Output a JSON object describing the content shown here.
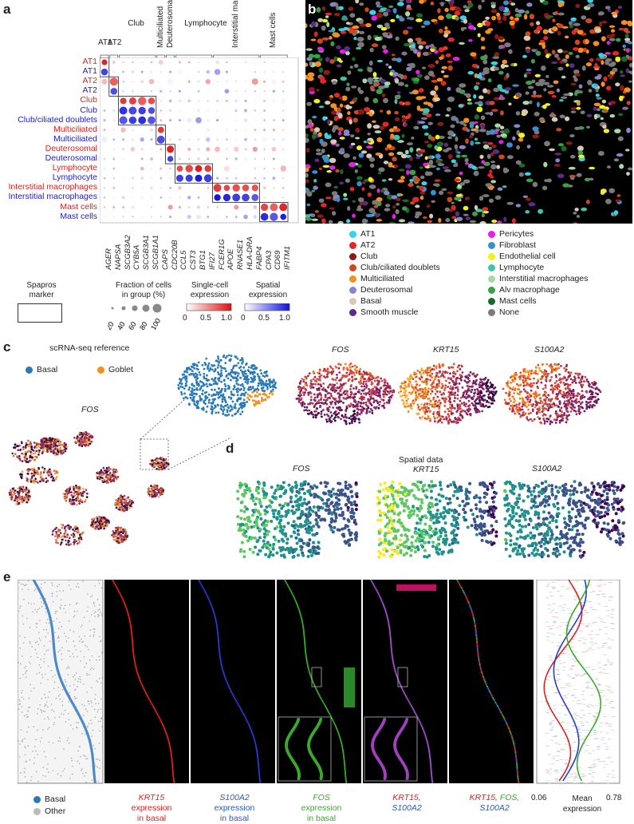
{
  "panels": {
    "a": "a",
    "b": "b",
    "c": "c",
    "d": "d",
    "e": "e"
  },
  "dotplot": {
    "groups": [
      "AT1",
      "AT2",
      "Club",
      "Multiciliated",
      "Deuterosomal",
      "Lymphocyte",
      "Interstitial macrophages",
      "Mast cells"
    ],
    "rows": [
      {
        "label": "AT1",
        "color": "red"
      },
      {
        "label": "AT1",
        "color": "blue"
      },
      {
        "label": "AT2",
        "color": "red"
      },
      {
        "label": "AT2",
        "color": "blue"
      },
      {
        "label": "Club",
        "color": "red"
      },
      {
        "label": "Club",
        "color": "blue"
      },
      {
        "label": "Club/ciliated doublets",
        "color": "blue"
      },
      {
        "label": "Multiciliated",
        "color": "red"
      },
      {
        "label": "Multiciliated",
        "color": "blue"
      },
      {
        "label": "Deuterosomal",
        "color": "red"
      },
      {
        "label": "Deuterosomal",
        "color": "blue"
      },
      {
        "label": "Lymphocyte",
        "color": "red"
      },
      {
        "label": "Lymphocyte",
        "color": "blue"
      },
      {
        "label": "Interstitial macrophages",
        "color": "red"
      },
      {
        "label": "Interstitial macrophages",
        "color": "blue"
      },
      {
        "label": "Mast cells",
        "color": "red"
      },
      {
        "label": "Mast cells",
        "color": "blue"
      }
    ],
    "genes": [
      "AGER",
      "NAPSA",
      "SCGB3A2",
      "CYB5A",
      "SCGB3A1",
      "SCGB1A1",
      "CAPS",
      "CDC20B",
      "CCL5",
      "CST3",
      "BTG1",
      "IFI27",
      "FCER1G",
      "APOE",
      "RNASE1",
      "HLA-DRA",
      "FABP4",
      "CPA3",
      "CD69",
      "IFITM1"
    ]
  },
  "legend_a": {
    "marker_title": "Spapros\nmarker",
    "frac_title": "Fraction of cells\nin group (%)",
    "frac_ticks": [
      "20",
      "40",
      "60",
      "80",
      "100"
    ],
    "sc_title": "Single-cell\nexpression",
    "sc_ticks": [
      "0",
      "0.5",
      "1.0"
    ],
    "sp_title": "Spatial\nexpression",
    "sp_ticks": [
      "0",
      "0.5",
      "1.0"
    ]
  },
  "legend_b": {
    "col1": [
      {
        "label": "AT1",
        "color": "#35d4e8"
      },
      {
        "label": "AT2",
        "color": "#e02828"
      },
      {
        "label": "Club",
        "color": "#8b1a1a"
      },
      {
        "label": "Club/ciliated doublets",
        "color": "#d2481e"
      },
      {
        "label": "Multiciliated",
        "color": "#f5901e"
      },
      {
        "label": "Deuterosomal",
        "color": "#8a84c8"
      },
      {
        "label": "Basal",
        "color": "#d9c8b4"
      },
      {
        "label": "Smooth muscle",
        "color": "#5a2c86"
      }
    ],
    "col2": [
      {
        "label": "Pericytes",
        "color": "#e81ee8"
      },
      {
        "label": "Fibroblast",
        "color": "#3a8fd0"
      },
      {
        "label": "Endothelial cell",
        "color": "#f2f21e"
      },
      {
        "label": "Lymphocyte",
        "color": "#3ec4a8"
      },
      {
        "label": "Interstitial macrophages",
        "color": "#a8d8a8"
      },
      {
        "label": "Alv macrophage",
        "color": "#3aa04a"
      },
      {
        "label": "Mast cells",
        "color": "#1a6a2a"
      },
      {
        "label": "None",
        "color": "#7a7a7a"
      }
    ]
  },
  "panel_c": {
    "title": "scRNA-seq reference",
    "legend": [
      {
        "label": "Basal",
        "color": "#2a7ab8"
      },
      {
        "label": "Goblet",
        "color": "#f5901e"
      }
    ],
    "umap_gene": "FOS",
    "zoom_genes": [
      "FOS",
      "KRT15",
      "S100A2"
    ]
  },
  "panel_d": {
    "title": "Spatial data",
    "genes": [
      "FOS",
      "KRT15",
      "S100A2"
    ]
  },
  "panel_e": {
    "legend": [
      {
        "label": "Basal",
        "color": "#2a7ab8"
      },
      {
        "label": "Other",
        "color": "#bbbbbb"
      }
    ],
    "captions": [
      {
        "gene": "KRT15",
        "rest": "expression\nin basal",
        "color": "#e02020"
      },
      {
        "gene": "S100A2",
        "rest": "expression\nin basal",
        "color": "#2a5ab8"
      },
      {
        "gene": "FOS",
        "rest": "expression\nin basal",
        "color": "#3aaa2a"
      }
    ],
    "cap4": [
      "KRT15,",
      "S100A2"
    ],
    "cap5": [
      "KRT15,",
      "FOS,",
      "S100A2"
    ],
    "axis": {
      "min": "0.06",
      "max": "0.78",
      "label": "Mean\nexpression"
    }
  }
}
